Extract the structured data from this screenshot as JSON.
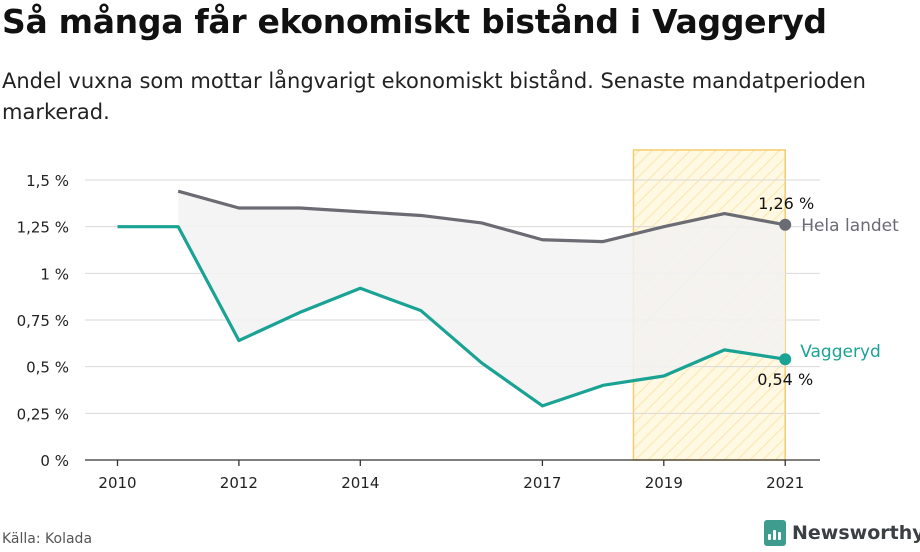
{
  "title": "Så många får ekonomiskt bistånd i Vaggeryd",
  "subtitle": "Andel vuxna som mottar långvarigt ekonomiskt bistånd. Senaste mandatperioden markerad.",
  "source": "Källa: Kolada",
  "brand": {
    "name": "Newsworthy",
    "icon": "newsworthy-logo-icon"
  },
  "colors": {
    "national": "#6b6b73",
    "local": "#1aa394",
    "highlight_fill": "#fbe7b0",
    "highlight_stroke": "#f2cd6b",
    "area": "#f2f2f2",
    "grid": "#d9d9d9"
  },
  "chart_data": {
    "type": "line",
    "x": [
      2010,
      2011,
      2012,
      2013,
      2014,
      2015,
      2016,
      2017,
      2018,
      2019,
      2020,
      2021
    ],
    "x_ticks": [
      "2010",
      "2012",
      "2014",
      "2017",
      "2019",
      "2021"
    ],
    "y_ticks": [
      "0 %",
      "0,25 %",
      "0,5 %",
      "0,75 %",
      "1 %",
      "1,25 %",
      "1,5 %"
    ],
    "ylim": [
      0,
      1.5
    ],
    "series": [
      {
        "name": "Hela landet",
        "values": [
          null,
          1.44,
          1.35,
          1.35,
          1.33,
          1.31,
          1.27,
          1.18,
          1.17,
          1.25,
          1.32,
          1.26
        ],
        "end_label": "1,26 %"
      },
      {
        "name": "Vaggeryd",
        "values": [
          1.25,
          1.25,
          0.64,
          0.79,
          0.92,
          0.8,
          0.52,
          0.29,
          0.4,
          0.45,
          0.59,
          0.54
        ],
        "end_label": "0,54 %"
      }
    ],
    "highlight": {
      "from": 2018.5,
      "to": 2021,
      "label": "Senaste mandatperioden"
    },
    "grid": true
  }
}
